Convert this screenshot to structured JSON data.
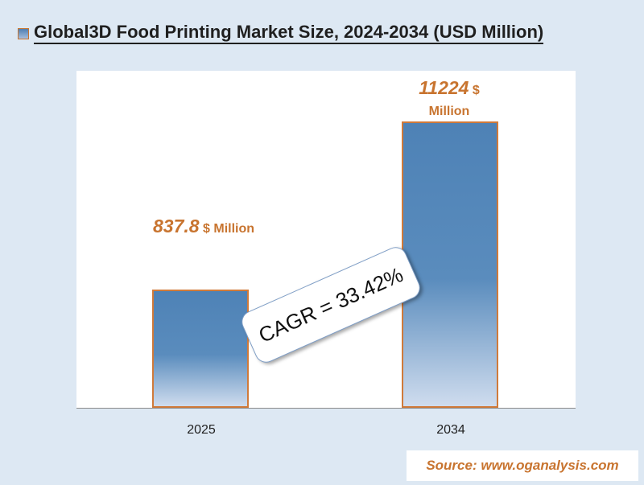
{
  "header": {
    "title": "Global3D Food Printing Market Size, 2024-2034 (USD Million)"
  },
  "chart_data": {
    "type": "bar",
    "categories": [
      "2025",
      "2034"
    ],
    "values": [
      837.8,
      11224
    ],
    "value_labels": [
      {
        "number": "837.8",
        "unit": "$ Million"
      },
      {
        "number": "11224",
        "unit": "$ Million"
      }
    ],
    "title": "Global3D Food Printing Market Size, 2024-2034 (USD Million)",
    "xlabel": "",
    "ylabel": "",
    "grid": false,
    "legend": "none",
    "annotation": "CAGR = 33.42%"
  },
  "footer": {
    "source": "Source: www.oganalysis.com"
  },
  "colors": {
    "background": "#dde8f3",
    "bar_top": "#4e82b6",
    "bar_bottom": "#cfdcee",
    "bar_border": "#d07a3a",
    "label_accent": "#c8742f"
  }
}
